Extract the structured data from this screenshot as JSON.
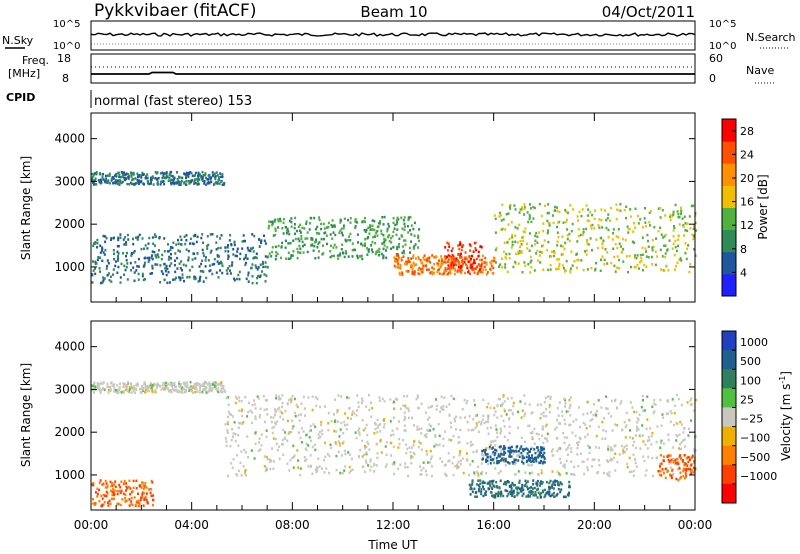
{
  "header": {
    "station": "Pykkvibaer (fitACF)",
    "beam": "Beam 10",
    "date": "04/Oct/2011"
  },
  "top_panel": {
    "left_label": "N.Sky",
    "right_label": "N.Search",
    "left_ticks": [
      "10^5",
      "10^0"
    ],
    "right_ticks": [
      "10^5",
      "10^0"
    ]
  },
  "freq_panel": {
    "left_label_line1": "Freq.",
    "left_label_line2": "[MHz]",
    "right_label": "Nave",
    "left_ticks": [
      "18",
      "8"
    ],
    "right_ticks": [
      "60",
      "0"
    ],
    "cpid_label": "CPID",
    "cpid_text": "normal (fast stereo) 153"
  },
  "chart_data": [
    {
      "type": "heatmap",
      "name": "power",
      "ylabel": "Slant Range [km]",
      "ylim": [
        180,
        4600
      ],
      "yticks": [
        1000,
        2000,
        3000,
        4000
      ],
      "xlim": [
        0,
        24
      ],
      "xticks": [
        "00:00",
        "04:00",
        "08:00",
        "12:00",
        "16:00",
        "20:00",
        "00:00"
      ],
      "colorbar": {
        "label": "Power [dB]",
        "ticks": [
          4,
          8,
          12,
          16,
          20,
          24,
          28
        ],
        "range": [
          0,
          30
        ],
        "colors": [
          "#2020ff",
          "#2055a0",
          "#2e8b57",
          "#50b040",
          "#f0c000",
          "#ff9000",
          "#ff5000",
          "#ff0000"
        ]
      },
      "scatter_bands": [
        {
          "hours": [
            0,
            5.3
          ],
          "range_km": [
            2950,
            3250
          ],
          "power_db": 8
        },
        {
          "hours": [
            0,
            7
          ],
          "range_km": [
            650,
            1800
          ],
          "power_db": 8
        },
        {
          "hours": [
            7,
            13
          ],
          "range_km": [
            1200,
            2200
          ],
          "power_db": 12
        },
        {
          "hours": [
            12,
            16
          ],
          "range_km": [
            850,
            1300
          ],
          "power_db": 24
        },
        {
          "hours": [
            14,
            15.5
          ],
          "range_km": [
            900,
            1600
          ],
          "power_db": 28
        },
        {
          "hours": [
            16,
            24
          ],
          "range_km": [
            900,
            2500
          ],
          "power_db": 16
        }
      ]
    },
    {
      "type": "heatmap",
      "name": "velocity",
      "ylabel": "Slant Range [km]",
      "ylim": [
        180,
        4600
      ],
      "yticks": [
        1000,
        2000,
        3000,
        4000
      ],
      "xlim": [
        0,
        24
      ],
      "xticks": [
        "00:00",
        "04:00",
        "08:00",
        "12:00",
        "16:00",
        "20:00",
        "00:00"
      ],
      "xlabel": "Time UT",
      "colorbar": {
        "label": "Velocity [m s",
        "label_sup": "-1",
        "label_close": "]",
        "ticks": [
          1000,
          500,
          100,
          25,
          -25,
          -100,
          -500,
          -1000
        ],
        "tick_labels": [
          "1000",
          "500",
          "100",
          "25",
          "−25",
          "−100",
          "−500",
          "−1000"
        ],
        "colors": [
          "#2040c0",
          "#206090",
          "#308060",
          "#50c040",
          "#c8c8c0",
          "#f0b000",
          "#ff8000",
          "#ff4000",
          "#ff0000"
        ]
      },
      "scatter_bands": [
        {
          "hours": [
            0,
            5.3
          ],
          "range_km": [
            2950,
            3200
          ],
          "velocity": 0
        },
        {
          "hours": [
            0,
            2.5
          ],
          "range_km": [
            300,
            900
          ],
          "velocity": -300
        },
        {
          "hours": [
            5.3,
            24
          ],
          "range_km": [
            1000,
            2900
          ],
          "velocity": 0
        },
        {
          "hours": [
            15.5,
            18
          ],
          "range_km": [
            1300,
            1700
          ],
          "velocity": 400
        },
        {
          "hours": [
            15,
            19
          ],
          "range_km": [
            500,
            900
          ],
          "velocity": 300
        },
        {
          "hours": [
            22.5,
            24
          ],
          "range_km": [
            900,
            1500
          ],
          "velocity": -300
        }
      ]
    }
  ]
}
